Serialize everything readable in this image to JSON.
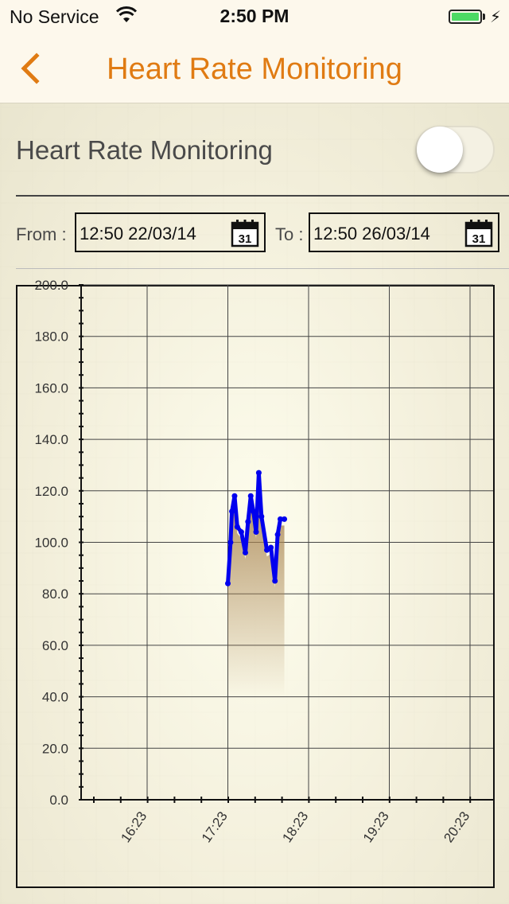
{
  "status_bar": {
    "carrier": "No Service",
    "time": "2:50 PM",
    "battery_color": "#4cd964"
  },
  "nav": {
    "title": "Heart Rate Monitoring",
    "back_icon": "chevron-left-icon",
    "accent_color": "#e07b13"
  },
  "monitoring": {
    "label": "Heart Rate Monitoring",
    "enabled": false
  },
  "date_range": {
    "from_label": "From :",
    "from_value": "12:50 22/03/14",
    "to_label": "To :",
    "to_value": "12:50 26/03/14",
    "calendar_icon_day": "31"
  },
  "chart_data": {
    "type": "line",
    "title": "",
    "xlabel": "",
    "ylabel": "",
    "ylim": [
      0,
      200
    ],
    "yticks": [
      "0.0",
      "20.0",
      "40.0",
      "60.0",
      "80.0",
      "100.0",
      "120.0",
      "140.0",
      "160.0",
      "180.0",
      "200.0"
    ],
    "xticks": [
      "16:23",
      "17:23",
      "18:23",
      "19:23",
      "20:23"
    ],
    "grid": true,
    "point_color": "#0000ee",
    "fill_color": "#a98552",
    "series": [
      {
        "x": [
          "17:23",
          "17:25",
          "17:26",
          "17:28",
          "17:30",
          "17:33",
          "17:36",
          "17:38",
          "17:40",
          "17:42",
          "17:44",
          "17:46",
          "17:48",
          "17:52",
          "17:55",
          "17:58",
          "18:00",
          "18:02",
          "18:05"
        ],
        "values": [
          84,
          100,
          112,
          118,
          106,
          104,
          96,
          108,
          118,
          112,
          104,
          127,
          110,
          97,
          98,
          85,
          103,
          109,
          109
        ]
      }
    ]
  }
}
